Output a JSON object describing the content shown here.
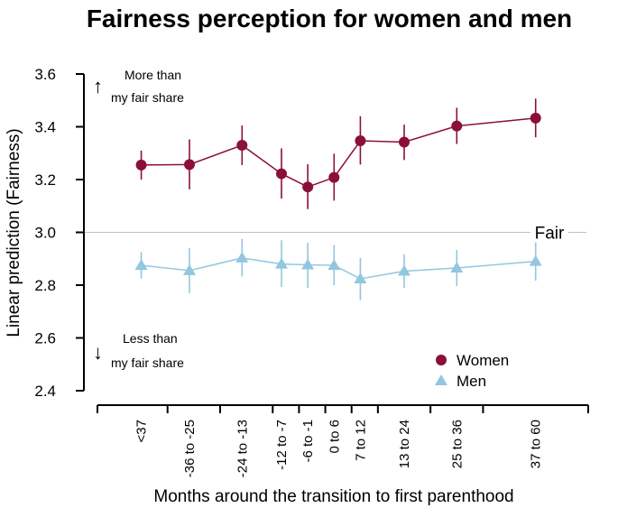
{
  "chart_data": {
    "type": "line",
    "title": "Fairness perception for women and men",
    "xlabel": "Months around the transition to first parenthood",
    "ylabel": "Linear prediction (Fairness)",
    "ylim": [
      2.4,
      3.6
    ],
    "yticks": [
      "2.4",
      "2.6",
      "2.8",
      "3.0",
      "3.2",
      "3.4",
      "3.6"
    ],
    "x_positions_months": [
      -42,
      -31,
      -19,
      -10,
      -4,
      2,
      8,
      18,
      30,
      48
    ],
    "categories": [
      "<37",
      "-36 to -25",
      "-24 to -13",
      "-12 to -7",
      "-6 to -1",
      "0 to 6",
      "7 to 12",
      "13 to 24",
      "25 to 36",
      "37 to 60"
    ],
    "category_boundaries_months": [
      -52,
      -36,
      -24,
      -12,
      -6,
      0,
      6,
      12,
      24,
      36,
      60
    ],
    "reference_line": {
      "value": 3.0,
      "label": "Fair",
      "color": "#bfbfbf"
    },
    "annotations": {
      "upper_arrow": "↑",
      "upper_line1": "More than",
      "upper_line2": "my fair share",
      "lower_arrow": "↓",
      "lower_line1": "Less than",
      "lower_line2": "my fair share"
    },
    "legend_position": "bottom-right",
    "series": [
      {
        "name": "Women",
        "marker": "circle",
        "color": "#8b0f3c",
        "values": [
          3.255,
          3.257,
          3.33,
          3.222,
          3.172,
          3.208,
          3.347,
          3.342,
          3.403,
          3.433
        ],
        "ci_low": [
          3.2,
          3.163,
          3.255,
          3.128,
          3.088,
          3.12,
          3.257,
          3.274,
          3.335,
          3.36
        ],
        "ci_high": [
          3.31,
          3.352,
          3.405,
          3.318,
          3.258,
          3.298,
          3.44,
          3.408,
          3.472,
          3.507
        ]
      },
      {
        "name": "Men",
        "marker": "triangle",
        "color": "#93c6df",
        "values": [
          2.875,
          2.855,
          2.903,
          2.88,
          2.877,
          2.875,
          2.824,
          2.853,
          2.865,
          2.89
        ],
        "ci_low": [
          2.825,
          2.77,
          2.833,
          2.793,
          2.79,
          2.8,
          2.743,
          2.79,
          2.797,
          2.817
        ],
        "ci_high": [
          2.925,
          2.94,
          2.975,
          2.97,
          2.96,
          2.952,
          2.903,
          2.917,
          2.933,
          2.962
        ]
      }
    ]
  }
}
